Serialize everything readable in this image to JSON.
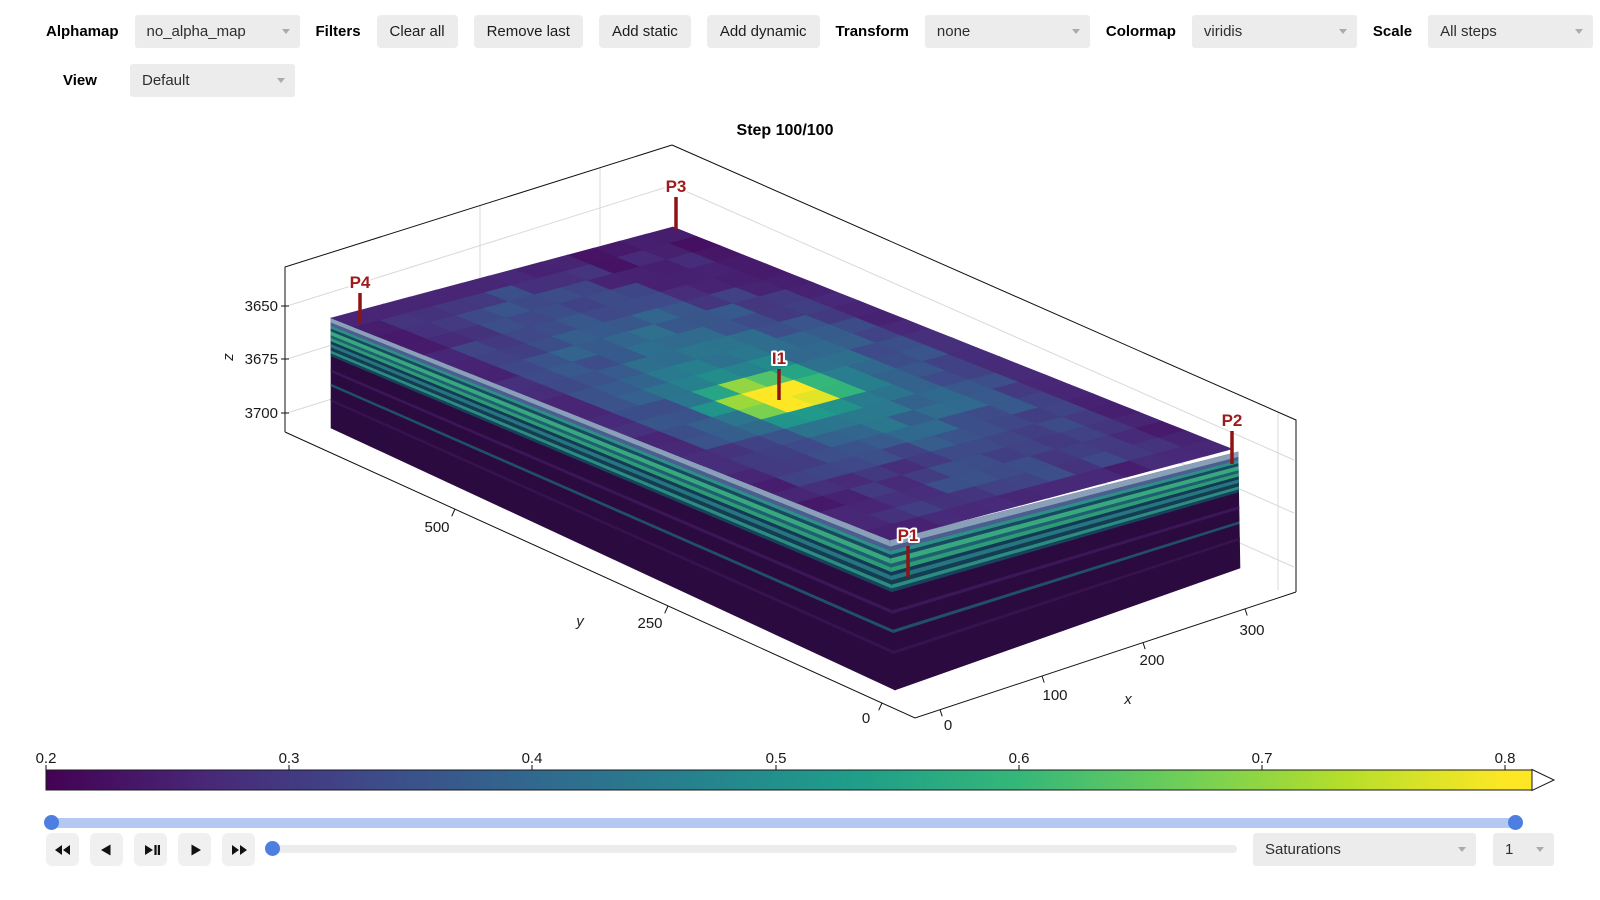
{
  "toolbar": {
    "alphamap_label": "Alphamap",
    "alphamap_value": "no_alpha_map",
    "filters_label": "Filters",
    "filter_buttons": [
      "Clear all",
      "Remove last",
      "Add static",
      "Add dynamic"
    ],
    "transform_label": "Transform",
    "transform_value": "none",
    "colormap_label": "Colormap",
    "colormap_value": "viridis",
    "scale_label": "Scale",
    "scale_value": "All steps",
    "view_label": "View",
    "view_value": "Default"
  },
  "plot": {
    "title": "Step 100/100",
    "wells": [
      {
        "label": "P3"
      },
      {
        "label": "P4"
      },
      {
        "label": "I1"
      },
      {
        "label": "P2"
      },
      {
        "label": "P1"
      }
    ],
    "axes": {
      "x": {
        "label": "x",
        "ticks": [
          "0",
          "100",
          "200",
          "300"
        ]
      },
      "y": {
        "label": "y",
        "ticks": [
          "500",
          "250",
          "0"
        ]
      },
      "z": {
        "label": "z",
        "ticks": [
          "3650",
          "3675",
          "3700"
        ]
      }
    }
  },
  "colorbar": {
    "min": 0.2,
    "max": 0.8,
    "ticks": [
      "0.2",
      "0.3",
      "0.4",
      "0.5",
      "0.6",
      "0.7",
      "0.8"
    ]
  },
  "playback": {
    "buttons": [
      "fast-backward",
      "step-backward",
      "play-pause",
      "play",
      "fast-forward"
    ],
    "property_value": "Saturations",
    "index_value": "1"
  },
  "colors": {
    "accent_blue": "#4d7fe3",
    "range_track": "#b5c8f1",
    "well_red": "#9e1b1b",
    "viridis_stops": [
      "#440154",
      "#482878",
      "#3e4a89",
      "#31688e",
      "#26828e",
      "#1f9e89",
      "#35b779",
      "#6ece58",
      "#b5de2b",
      "#fde725"
    ]
  }
}
